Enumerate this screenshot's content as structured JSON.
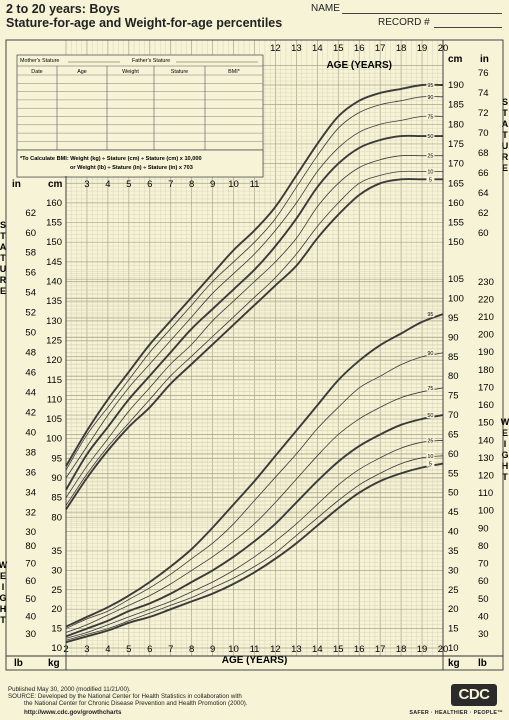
{
  "header": {
    "title_line1": "2 to 20 years: Boys",
    "title_line2": "Stature-for-age and Weight-for-age percentiles",
    "name_label": "NAME",
    "record_label": "RECORD #"
  },
  "record_table": {
    "mother_label": "Mother's Stature",
    "father_label": "Father's Stature",
    "columns": [
      "Date",
      "Age",
      "Weight",
      "Stature",
      "BMI*"
    ],
    "bmi_note_line1": "*To Calculate BMI: Weight (kg) ÷ Stature (cm) ÷ Stature (cm) x 10,000",
    "bmi_note_line2": "or Weight (lb) ÷ Stature (in) ÷ Stature (in) x 703"
  },
  "axes": {
    "age_title": "AGE (YEARS)",
    "cm_label": "cm",
    "in_label": "in",
    "kg_label": "kg",
    "lb_label": "lb",
    "stature_side_label": "S T A T U R E",
    "weight_side_label": "W E I G H T"
  },
  "footer": {
    "line1": "Published May 30, 2000 (modified 11/21/00).",
    "line2": "SOURCE: Developed by the National Center for Health Statistics in collaboration with",
    "line3": "the National Center for Chronic Disease Prevention and Health Promotion (2000).",
    "line4": "http://www.cdc.gov/growthcharts",
    "logo_text": "CDC",
    "tagline": "SAFER · HEALTHIER · PEOPLE™"
  },
  "colors": {
    "background": "#f6f3d6",
    "grid": "#c9c4a4",
    "curve": "#3a3a3a"
  },
  "chart_data": [
    {
      "type": "line",
      "title": "Stature-for-age percentiles",
      "xlabel": "AGE (YEARS)",
      "ylabel": "cm",
      "xlim": [
        2,
        20
      ],
      "ylim": [
        78,
        192
      ],
      "x": [
        2,
        3,
        4,
        5,
        6,
        7,
        8,
        9,
        10,
        11,
        12,
        13,
        14,
        15,
        16,
        17,
        18,
        19,
        20
      ],
      "series": [
        {
          "name": "95",
          "values": [
            93,
            102,
            110,
            117,
            124,
            130,
            136,
            142,
            148,
            153,
            159,
            167,
            175,
            182,
            186,
            188,
            189,
            190,
            190
          ]
        },
        {
          "name": "90",
          "values": [
            92,
            101,
            108,
            115,
            122,
            128,
            134,
            140,
            145,
            150,
            156,
            164,
            172,
            179,
            183,
            185,
            186,
            187,
            187
          ]
        },
        {
          "name": "75",
          "values": [
            90,
            98,
            106,
            113,
            119,
            125,
            131,
            137,
            142,
            147,
            153,
            160,
            168,
            174,
            178,
            180,
            181,
            182,
            182
          ]
        },
        {
          "name": "50",
          "values": [
            87,
            96,
            103,
            110,
            116,
            122,
            128,
            133,
            138,
            143,
            149,
            156,
            164,
            170,
            174,
            176,
            177,
            177,
            177
          ]
        },
        {
          "name": "25",
          "values": [
            85,
            93,
            100,
            107,
            113,
            119,
            124,
            130,
            135,
            140,
            145,
            151,
            159,
            165,
            169,
            171,
            172,
            172,
            172
          ]
        },
        {
          "name": "10",
          "values": [
            83,
            91,
            98,
            104,
            110,
            116,
            121,
            126,
            131,
            136,
            141,
            147,
            154,
            160,
            165,
            167,
            168,
            168,
            168
          ]
        },
        {
          "name": "5",
          "values": [
            82,
            90,
            97,
            103,
            108,
            114,
            119,
            124,
            129,
            134,
            139,
            144,
            151,
            157,
            162,
            165,
            166,
            166,
            166
          ]
        }
      ]
    },
    {
      "type": "line",
      "title": "Weight-for-age percentiles",
      "xlabel": "AGE (YEARS)",
      "ylabel": "kg",
      "xlim": [
        2,
        20
      ],
      "ylim": [
        10,
        105
      ],
      "x": [
        2,
        3,
        4,
        5,
        6,
        7,
        8,
        9,
        10,
        11,
        12,
        13,
        14,
        15,
        16,
        17,
        18,
        19,
        20
      ],
      "series": [
        {
          "name": "95",
          "values": [
            15.5,
            18,
            20.5,
            23.5,
            27,
            31,
            35.5,
            41,
            47,
            53,
            59.5,
            66,
            72.5,
            79,
            84,
            88,
            91,
            94,
            96
          ]
        },
        {
          "name": "90",
          "values": [
            15,
            17.5,
            19.5,
            22.5,
            25.5,
            29,
            33,
            37,
            42,
            48,
            54,
            60,
            66.5,
            72,
            77,
            80,
            83,
            85,
            86
          ]
        },
        {
          "name": "75",
          "values": [
            14,
            16,
            18.5,
            21,
            23.5,
            26.5,
            30,
            33.5,
            37.5,
            42,
            47.5,
            53.5,
            59.5,
            65,
            69,
            72,
            74.5,
            76,
            77
          ]
        },
        {
          "name": "50",
          "values": [
            13,
            15,
            17,
            19.5,
            21.5,
            24,
            27,
            30,
            33.5,
            37.5,
            42,
            47.5,
            53,
            58,
            62,
            65,
            67.5,
            69,
            70
          ]
        },
        {
          "name": "25",
          "values": [
            12.5,
            14,
            16,
            18,
            20,
            22,
            24.5,
            27,
            30,
            33.5,
            37.5,
            42,
            47,
            52,
            56,
            59,
            61.5,
            63,
            63.5
          ]
        },
        {
          "name": "10",
          "values": [
            12,
            13.5,
            15,
            17,
            19,
            21,
            23,
            25.5,
            28,
            31,
            34.5,
            39,
            43.5,
            48,
            52,
            55,
            57.5,
            59,
            59.5
          ]
        },
        {
          "name": "5",
          "values": [
            11.5,
            13,
            14.5,
            16.5,
            18,
            20,
            22,
            24,
            26.5,
            29.5,
            33,
            37,
            41.5,
            46,
            50,
            53,
            55,
            56.5,
            57.5
          ]
        }
      ]
    }
  ],
  "ticks": {
    "top_age": [
      "12",
      "13",
      "14",
      "15",
      "16",
      "17",
      "18",
      "19",
      "20"
    ],
    "mid_age": [
      "3",
      "4",
      "5",
      "6",
      "7",
      "8",
      "9",
      "10",
      "11"
    ],
    "bottom_age": [
      "2",
      "3",
      "4",
      "5",
      "6",
      "7",
      "8",
      "9",
      "10",
      "11",
      "12",
      "13",
      "14",
      "15",
      "16",
      "17",
      "18",
      "19",
      "20"
    ],
    "stature_left_cm": [
      "160",
      "155",
      "150",
      "145",
      "140",
      "135",
      "130",
      "125",
      "120",
      "115",
      "110",
      "105",
      "100",
      "95",
      "90",
      "85",
      "80"
    ],
    "stature_left_in": [
      "62",
      "60",
      "58",
      "56",
      "54",
      "52",
      "50",
      "48",
      "46",
      "44",
      "42",
      "40",
      "38",
      "36",
      "34",
      "32",
      "30"
    ],
    "stature_right_cm": [
      "190",
      "185",
      "180",
      "175",
      "170",
      "165",
      "160",
      "155",
      "150"
    ],
    "stature_right_in": [
      "76",
      "74",
      "72",
      "70",
      "68",
      "66",
      "64",
      "62",
      "60"
    ],
    "weight_left_kg": [
      "35",
      "30",
      "25",
      "20",
      "15",
      "10"
    ],
    "weight_left_lb": [
      "80",
      "70",
      "60",
      "50",
      "40",
      "30"
    ],
    "weight_right_kg": [
      "105",
      "100",
      "95",
      "90",
      "85",
      "80",
      "75",
      "70",
      "65",
      "60",
      "55",
      "50",
      "45",
      "40",
      "35",
      "30",
      "25",
      "20",
      "15",
      "10"
    ],
    "weight_right_lb": [
      "230",
      "220",
      "210",
      "200",
      "190",
      "180",
      "170",
      "160",
      "150",
      "140",
      "130",
      "120",
      "110",
      "100",
      "90",
      "80",
      "70",
      "60",
      "50",
      "40",
      "30"
    ]
  }
}
